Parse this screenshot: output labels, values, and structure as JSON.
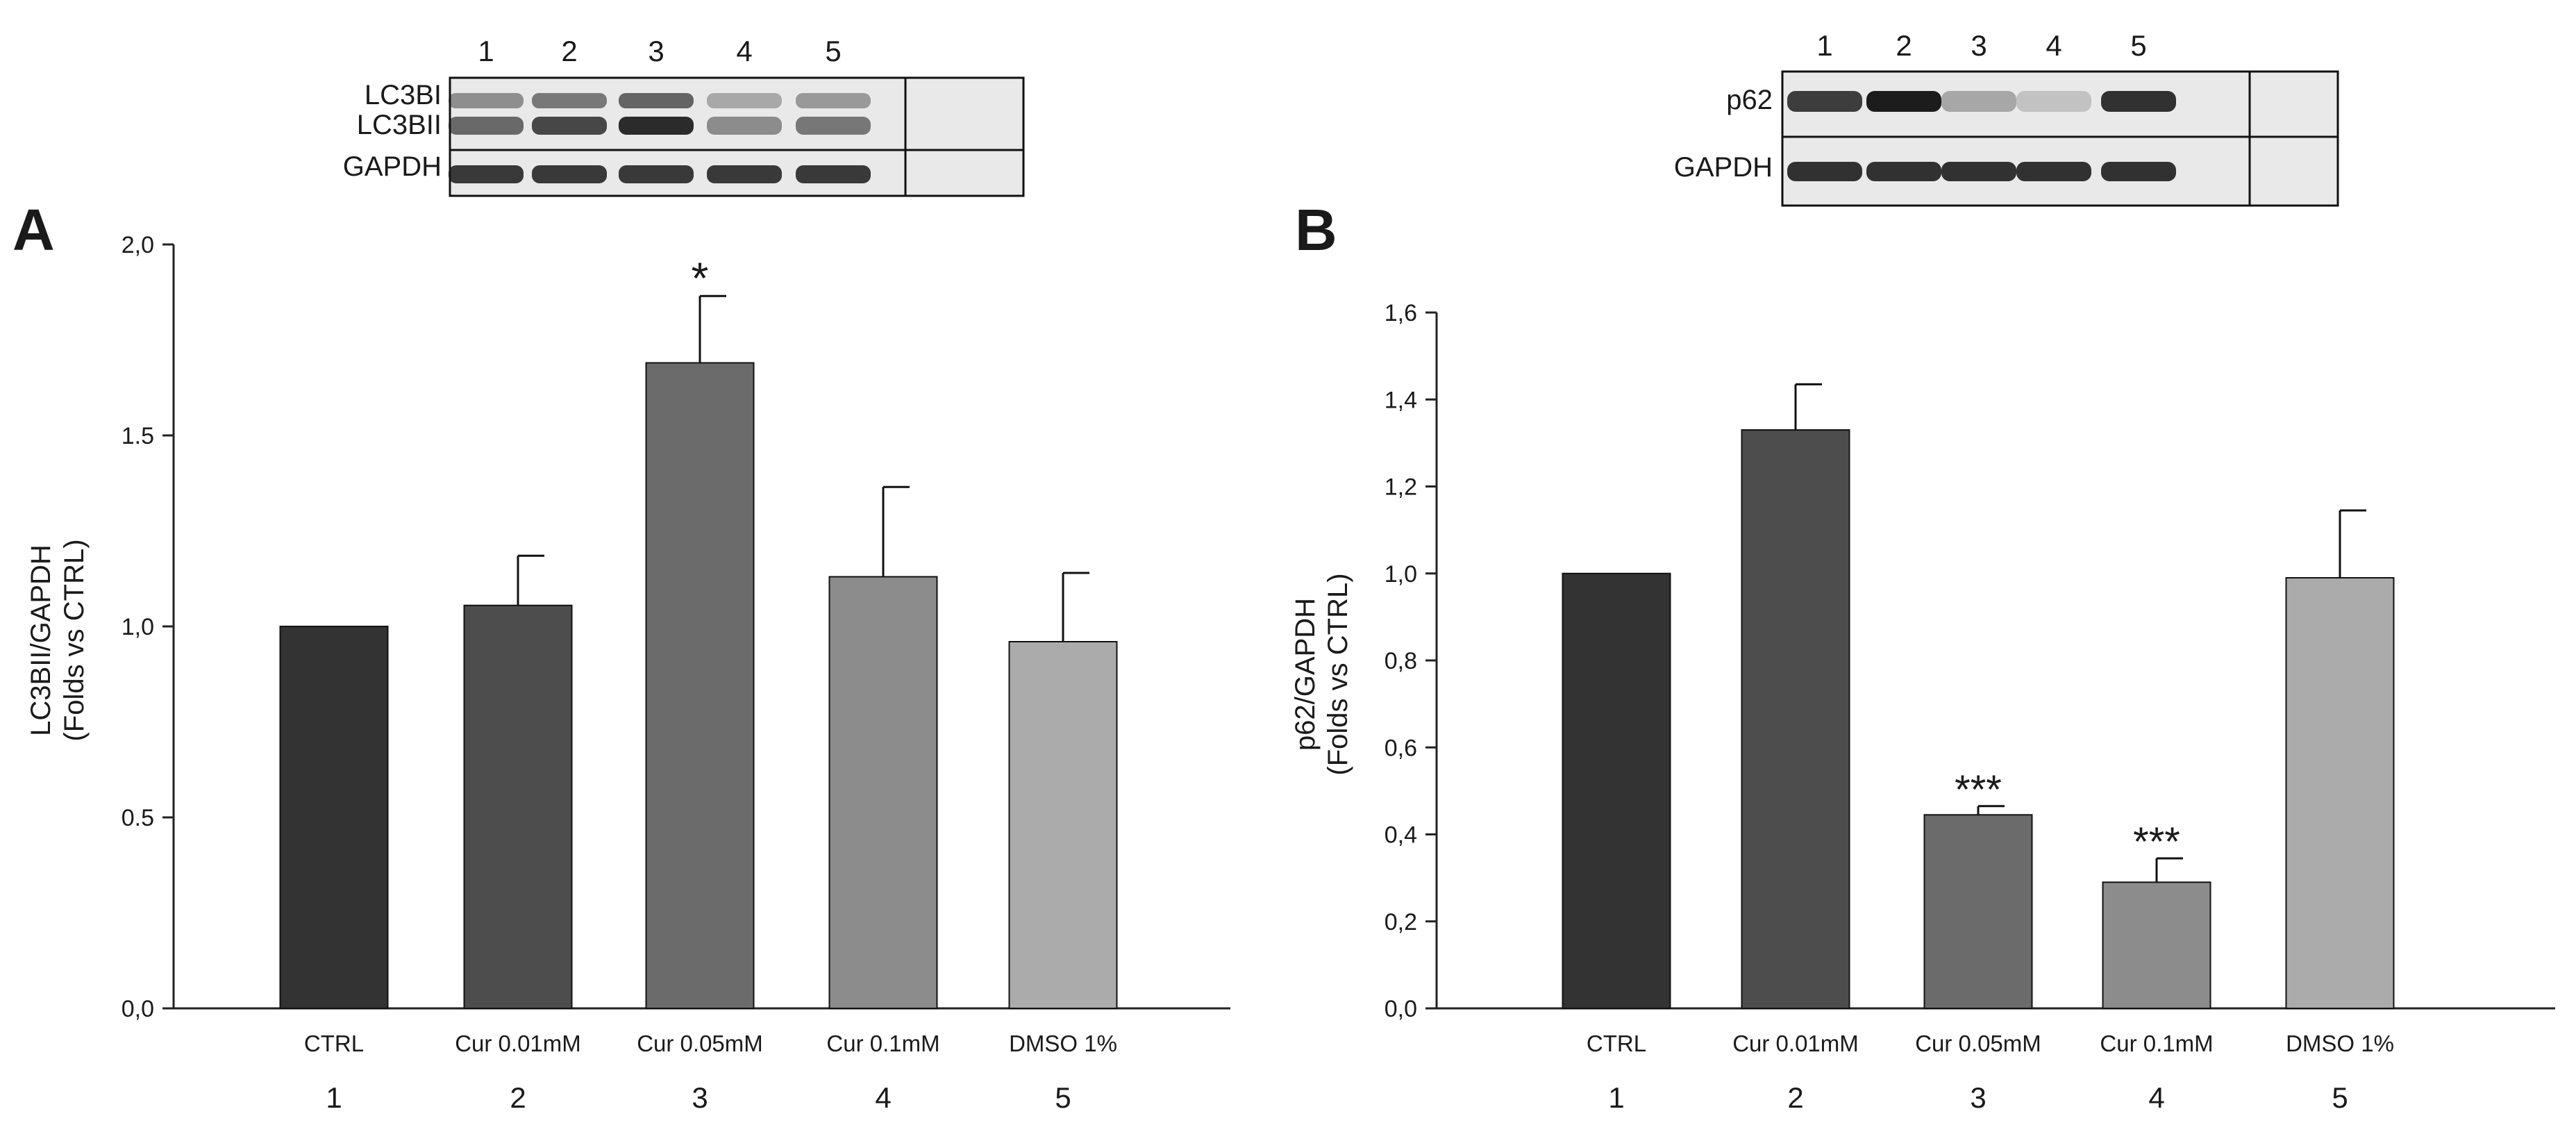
{
  "chart_data": [
    {
      "type": "bar",
      "panel_label": "A",
      "ylabel_line1": "LC3BII/GAPDH",
      "ylabel_line2": "(Folds vs CTRL)",
      "ylim": [
        0,
        2.0
      ],
      "yticks": [
        0,
        0.5,
        1.0,
        1.5,
        2.0
      ],
      "ytick_labels": [
        "0,0",
        "0.5",
        "1,0",
        "1.5",
        "2,0"
      ],
      "categories": [
        "CTRL",
        "Cur 0.01mM",
        "Cur 0.05mM",
        "Cur 0.1mM",
        "DMSO 1%"
      ],
      "lane_numbers": [
        "1",
        "2",
        "3",
        "4",
        "5"
      ],
      "values": [
        1.0,
        1.055,
        1.69,
        1.13,
        0.96
      ],
      "errors": [
        0,
        0.13,
        0.175,
        0.235,
        0.18
      ],
      "significance": [
        "",
        "",
        "*",
        "",
        ""
      ],
      "bar_colors": [
        "#333333",
        "#4d4d4d",
        "#6b6b6b",
        "#8c8c8c",
        "#ababab"
      ],
      "blot": {
        "lane_numbers": [
          "1",
          "2",
          "3",
          "4",
          "5"
        ],
        "labels": [
          "LC3BI",
          "LC3BII",
          "GAPDH"
        ]
      }
    },
    {
      "type": "bar",
      "panel_label": "B",
      "ylabel_line1": "p62/GAPDH",
      "ylabel_line2": "(Folds vs CTRL)",
      "ylim": [
        0,
        1.6
      ],
      "yticks": [
        0,
        0.2,
        0.4,
        0.6,
        0.8,
        1.0,
        1.2,
        1.4,
        1.6
      ],
      "ytick_labels": [
        "0,0",
        "0,2",
        "0,4",
        "0,6",
        "0,8",
        "1,0",
        "1,2",
        "1,4",
        "1,6"
      ],
      "categories": [
        "CTRL",
        "Cur 0.01mM",
        "Cur 0.05mM",
        "Cur 0.1mM",
        "DMSO 1%"
      ],
      "lane_numbers": [
        "1",
        "2",
        "3",
        "4",
        "5"
      ],
      "values": [
        1.0,
        1.33,
        0.445,
        0.29,
        0.99
      ],
      "errors": [
        0,
        0.105,
        0.02,
        0.055,
        0.155
      ],
      "significance": [
        "",
        "",
        "***",
        "***",
        ""
      ],
      "bar_colors": [
        "#333333",
        "#4d4d4d",
        "#6b6b6b",
        "#8c8c8c",
        "#ababab"
      ],
      "blot": {
        "lane_numbers": [
          "1",
          "2",
          "3",
          "4",
          "5"
        ],
        "labels": [
          "p62",
          "GAPDH"
        ]
      }
    }
  ]
}
